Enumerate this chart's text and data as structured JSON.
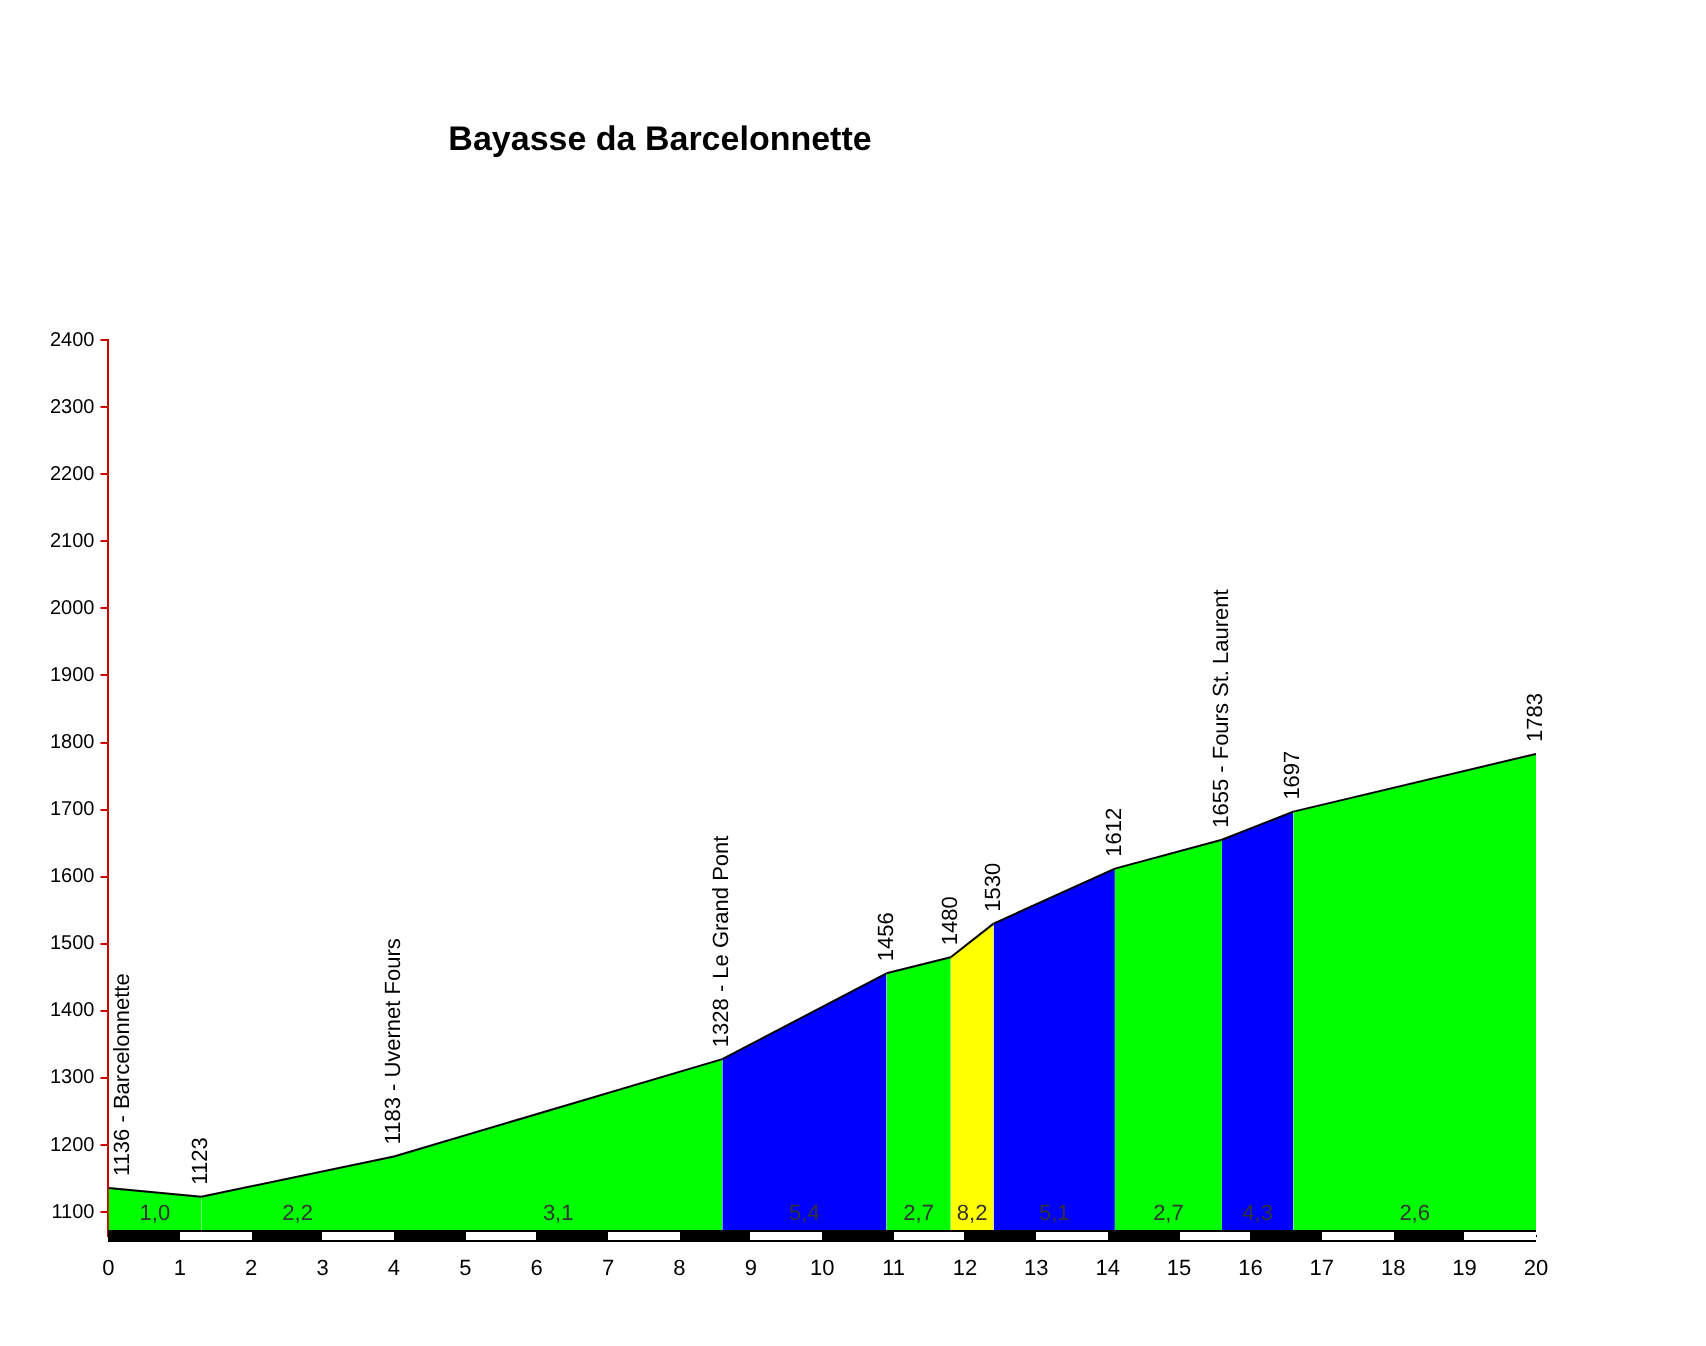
{
  "chart_data": {
    "type": "area",
    "title": "Bayasse da Barcelonnette",
    "xlim": [
      0,
      20
    ],
    "xticks": [
      0,
      1,
      2,
      3,
      4,
      5,
      6,
      7,
      8,
      9,
      10,
      11,
      12,
      13,
      14,
      15,
      16,
      17,
      18,
      19,
      20
    ],
    "ylim": [
      1065,
      2400
    ],
    "yticks": [
      1100,
      1200,
      1300,
      1400,
      1500,
      1600,
      1700,
      1800,
      1900,
      2000,
      2100,
      2200,
      2300,
      2400
    ],
    "grid": false,
    "marker": "none",
    "series": [
      {
        "color": "#00ff00",
        "x": [
          0,
          1.3
        ],
        "values": [
          1136,
          1123
        ],
        "value_labels": [
          "1136 - Barcelonnette",
          null
        ]
      },
      {
        "color": "#00ff00",
        "x": [
          1.3,
          4.0
        ],
        "values": [
          1123,
          1183
        ],
        "value_labels": [
          "1123",
          null
        ]
      },
      {
        "color": "#00ff00",
        "x": [
          4.0,
          8.6
        ],
        "values": [
          1183,
          1328
        ],
        "value_labels": [
          "1183 - Uvernet Fours",
          null
        ]
      },
      {
        "color": "#0000ff",
        "x": [
          8.6,
          10.9
        ],
        "values": [
          1328,
          1456
        ],
        "value_labels": [
          "1328 - Le Grand Pont",
          null
        ]
      },
      {
        "color": "#00ff00",
        "x": [
          10.9,
          11.8
        ],
        "values": [
          1456,
          1480
        ],
        "value_labels": [
          "1456",
          null
        ]
      },
      {
        "color": "#ffff00",
        "x": [
          11.8,
          12.4
        ],
        "values": [
          1480,
          1530
        ],
        "value_labels": [
          "1480",
          null
        ]
      },
      {
        "color": "#0000ff",
        "x": [
          12.4,
          14.1
        ],
        "values": [
          1530,
          1612
        ],
        "value_labels": [
          "1530",
          null
        ]
      },
      {
        "color": "#00ff00",
        "x": [
          14.1,
          15.6
        ],
        "values": [
          1612,
          1655
        ],
        "value_labels": [
          "1612",
          null
        ]
      },
      {
        "color": "#0000ff",
        "x": [
          15.6,
          16.6
        ],
        "values": [
          1655,
          1697
        ],
        "value_labels": [
          "1655 - Fours St. Laurent",
          null
        ]
      },
      {
        "color": "#00ff00",
        "x": [
          16.6,
          20
        ],
        "values": [
          1697,
          1783
        ],
        "value_labels": [
          "1697",
          "1783"
        ]
      }
    ],
    "annotations": [
      "1,0",
      "2,2",
      "3,1",
      "5,4",
      "2,7",
      "8,2",
      "5,1",
      "2,7",
      "4,3",
      "2,6"
    ]
  }
}
